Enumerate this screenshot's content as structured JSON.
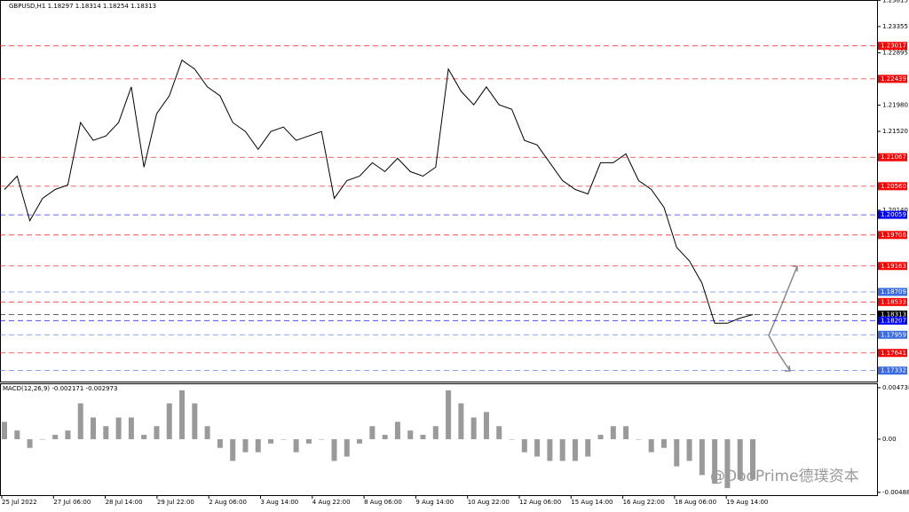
{
  "chart_data": [
    {
      "type": "line",
      "title": "GBPUSD,H1  1.18297 1.18314 1.18254 1.18313",
      "color": "#000000",
      "values": [
        1.20503,
        1.20737,
        1.19956,
        1.20346,
        1.20503,
        1.20581,
        1.21674,
        1.21362,
        1.2144,
        1.21674,
        1.22299,
        1.20893,
        1.2183,
        1.22142,
        1.22767,
        1.22611,
        1.22299,
        1.22142,
        1.21674,
        1.21518,
        1.21205,
        1.21518,
        1.21596,
        1.21362,
        1.2144,
        1.21518,
        1.20346,
        1.20659,
        1.20737,
        1.20971,
        1.20815,
        1.21049,
        1.20815,
        1.20737,
        1.20893,
        1.22611,
        1.22221,
        1.21986,
        1.22299,
        1.21986,
        1.21908,
        1.21362,
        1.21283,
        1.20971,
        1.20659,
        1.20503,
        1.20424,
        1.20971,
        1.20971,
        1.21127,
        1.20659,
        1.20503,
        1.2019,
        1.19487,
        1.19253,
        1.18863,
        1.1816,
        1.1816,
        1.1825,
        1.18313
      ],
      "ylim": [
        1.1714,
        1.2382
      ],
      "yticks": [
        1.23815,
        1.23355,
        1.22895,
        {
          "value": 1.2198,
          "label": "1.21980"
        },
        {
          "value": 1.2152,
          "label": "1.21520"
        },
        {
          "value": 1.2014,
          "label": "1.20140"
        }
      ],
      "levels": [
        {
          "value": 1.23017,
          "color": "#ff0000"
        },
        {
          "value": 1.22439,
          "color": "#ff0000"
        },
        {
          "value": 1.21067,
          "color": "#ff0000"
        },
        {
          "value": 1.2056,
          "label": "1.20560",
          "color": "#ff0000"
        },
        {
          "value": 1.20059,
          "color": "#0000ff"
        },
        {
          "value": 1.19706,
          "color": "#ff0000"
        },
        {
          "value": 1.19163,
          "color": "#ff0000"
        },
        {
          "value": 1.18709,
          "color": "#3a6be0"
        },
        {
          "value": 1.18533,
          "color": "#ff0000"
        },
        {
          "value": 1.18313,
          "color": "#000000"
        },
        {
          "value": 1.18207,
          "color": "#0000ff"
        },
        {
          "value": 1.17959,
          "color": "#3a6be0"
        },
        {
          "value": 1.17641,
          "color": "#ff0000"
        },
        {
          "value": 1.17332,
          "color": "#3a6be0"
        }
      ]
    },
    {
      "type": "bar",
      "title": "MACD(12,26,9) -0.002171 -0.002973",
      "color": "#9a9a9a",
      "values": [
        0.0016,
        0.0008,
        -0.0008,
        0,
        0.0004,
        0.0008,
        0.0033,
        0.002,
        0.0012,
        0.002,
        0.002,
        0.0004,
        0.0012,
        0.0033,
        0.0045,
        0.0033,
        0.0012,
        -0.0008,
        -0.002,
        -0.0012,
        -0.0012,
        -0.0004,
        0,
        -0.0012,
        -0.0004,
        0,
        -0.002,
        -0.0016,
        -0.0004,
        0.0012,
        0.0004,
        0.0016,
        0.0008,
        0.0004,
        0.0012,
        0.0045,
        0.0033,
        0.002,
        0.0025,
        0.0012,
        0,
        -0.0012,
        -0.0016,
        -0.002,
        -0.002,
        -0.002,
        -0.0016,
        0.0004,
        0.0012,
        0.0012,
        0,
        -0.0012,
        -0.0008,
        -0.0025,
        -0.002,
        -0.0033,
        -0.0041,
        -0.0045,
        -0.0037,
        -0.0037
      ],
      "ylim": [
        -0.00515,
        0.00506
      ],
      "yticks": [
        0.004738,
        {
          "value": 0,
          "label": "0.00"
        },
        -0.004889
      ],
      "x_labels": [
        "25 Jul 2022",
        "27 Jul 06:00",
        "28 Jul 14:00",
        "29 Jul 22:00",
        "2 Aug 06:00",
        "3 Aug 14:00",
        "4 Aug 22:00",
        "8 Aug 06:00",
        "9 Aug 14:00",
        "10 Aug 22:00",
        "12 Aug 06:00",
        "15 Aug 14:00",
        "16 Aug 22:00",
        "18 Aug 06:00",
        "19 Aug 14:00"
      ],
      "watermark": "@DooPrime德璞资本"
    }
  ]
}
